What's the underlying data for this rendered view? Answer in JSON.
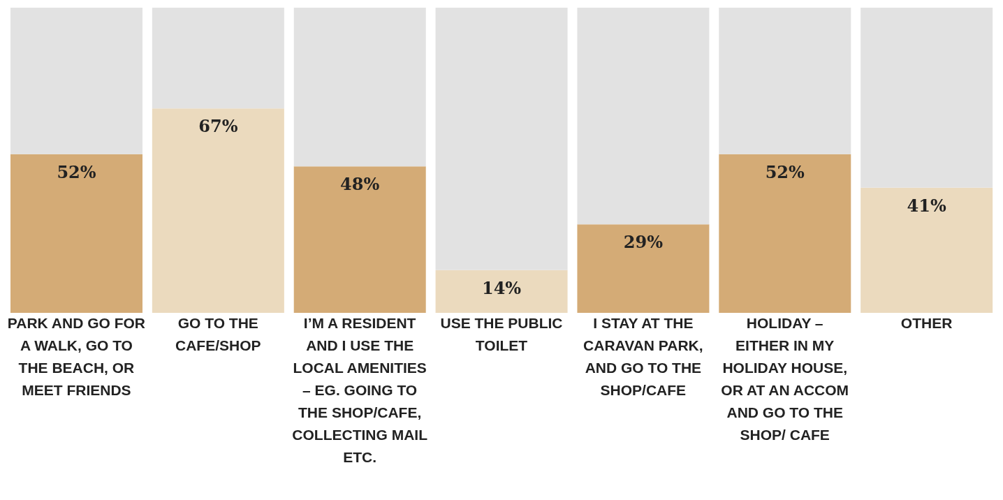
{
  "chart_data": {
    "type": "bar",
    "stacked": true,
    "data_labels": false,
    "legend": false,
    "grid": false,
    "tick_labels": "x",
    "categories": [
      "PARK AND GO FOR A WALK, GO TO THE BEACH, OR MEET FRIENDS",
      "GO TO THE CAFE/SHOP",
      "I’M A RESIDENT AND I USE THE LOCAL AMENITIES – EG. GOING TO THE SHOP/CAFE, COLLECTING MAIL ETC.",
      "USE THE PUBLIC TOILET",
      "I STAY AT THE CARAVAN PARK, AND GO TO THE SHOP/CAFE",
      "HOLIDAY – EITHER IN MY HOLIDAY HOUSE, OR AT AN ACCOM AND GO TO THE SHOP/ CAFE",
      "OTHER"
    ],
    "series": [
      {
        "values": [
          52,
          67,
          48,
          14,
          29,
          52,
          41
        ],
        "colors": [
          "#d4ab76",
          "#ebdabe",
          "#d4ab76",
          "#ebdabe",
          "#d4ab76",
          "#d4ab76",
          "#ebdabe"
        ],
        "value_labels": [
          "52%",
          "67%",
          "48%",
          "14%",
          "29%",
          "52%",
          "41%"
        ]
      },
      {
        "values": [
          48,
          33,
          52,
          86,
          71,
          48,
          59
        ],
        "color": "#e2e2e2"
      }
    ]
  }
}
